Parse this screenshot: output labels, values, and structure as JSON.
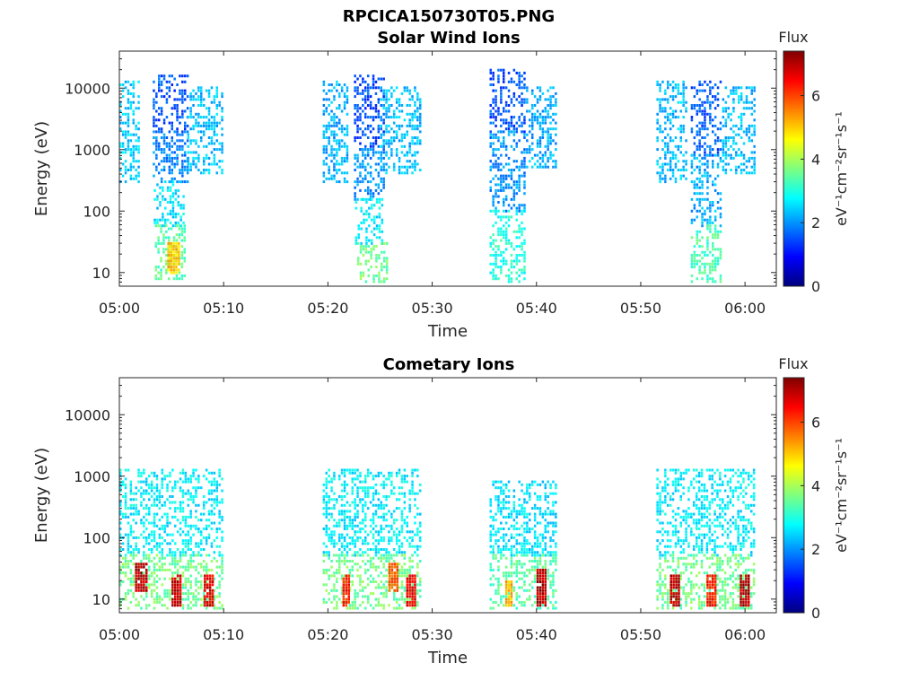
{
  "figure_title": "RPCICA150730T05.PNG",
  "colormap": [
    "#00007f",
    "#0000ff",
    "#007fff",
    "#00ffff",
    "#7fff7f",
    "#ffff00",
    "#ff7f00",
    "#ff0000",
    "#7f0000"
  ],
  "chart_data": [
    {
      "type": "heatmap",
      "title": "Solar Wind Ions",
      "xlabel": "Time",
      "ylabel": "Energy (eV)",
      "x_ticks": [
        "05:00",
        "05:10",
        "05:20",
        "05:30",
        "05:40",
        "05:50",
        "06:00"
      ],
      "x_tick_minutes": [
        0,
        10,
        20,
        30,
        40,
        50,
        60
      ],
      "xlim_minutes": [
        0,
        63
      ],
      "y_ticks": [
        "10",
        "100",
        "1000",
        "10000"
      ],
      "y_tick_values": [
        10,
        100,
        1000,
        10000
      ],
      "ylim": [
        6,
        40000
      ],
      "yscale": "log",
      "colorbar": {
        "label": "Flux",
        "units": "eV⁻¹cm⁻²sr⁻¹s⁻¹",
        "ticks": [
          "0",
          "2",
          "4",
          "6"
        ],
        "range": [
          0,
          7.4
        ]
      },
      "series": [
        {
          "t0": 0.0,
          "t1": 2.0,
          "e_lo": 300,
          "e_hi": 12000,
          "level": 2.4
        },
        {
          "t0": 3.2,
          "t1": 6.5,
          "e_lo": 2000,
          "e_hi": 15000,
          "level": 1.5
        },
        {
          "t0": 3.2,
          "t1": 6.5,
          "e_lo": 300,
          "e_hi": 2000,
          "level": 1.9
        },
        {
          "t0": 3.3,
          "t1": 6.3,
          "e_lo": 60,
          "e_hi": 300,
          "level": 2.6
        },
        {
          "t0": 3.4,
          "t1": 6.3,
          "e_lo": 8,
          "e_hi": 60,
          "level": 3.4
        },
        {
          "t0": 4.6,
          "t1": 5.7,
          "e_lo": 10,
          "e_hi": 30,
          "level": 5.0
        },
        {
          "t0": 6.5,
          "t1": 9.8,
          "e_lo": 400,
          "e_hi": 10000,
          "level": 2.3
        },
        {
          "t0": 19.5,
          "t1": 22.0,
          "e_lo": 300,
          "e_hi": 12000,
          "level": 2.2
        },
        {
          "t0": 22.5,
          "t1": 25.5,
          "e_lo": 1000,
          "e_hi": 15000,
          "level": 1.5
        },
        {
          "t0": 22.5,
          "t1": 25.5,
          "e_lo": 150,
          "e_hi": 1000,
          "level": 2.0
        },
        {
          "t0": 22.6,
          "t1": 25.2,
          "e_lo": 30,
          "e_hi": 150,
          "level": 2.7
        },
        {
          "t0": 22.8,
          "t1": 25.8,
          "e_lo": 7,
          "e_hi": 30,
          "level": 3.6
        },
        {
          "t0": 25.0,
          "t1": 29.0,
          "e_lo": 400,
          "e_hi": 10000,
          "level": 2.3
        },
        {
          "t0": 35.5,
          "t1": 39.0,
          "e_lo": 2000,
          "e_hi": 20000,
          "level": 1.5
        },
        {
          "t0": 35.5,
          "t1": 39.0,
          "e_lo": 100,
          "e_hi": 2000,
          "level": 2.0
        },
        {
          "t0": 35.5,
          "t1": 38.8,
          "e_lo": 7,
          "e_hi": 100,
          "level": 3.0
        },
        {
          "t0": 39.0,
          "t1": 42.0,
          "e_lo": 500,
          "e_hi": 10000,
          "level": 2.2
        },
        {
          "t0": 51.5,
          "t1": 54.5,
          "e_lo": 300,
          "e_hi": 12000,
          "level": 2.3
        },
        {
          "t0": 54.8,
          "t1": 57.8,
          "e_lo": 800,
          "e_hi": 12000,
          "level": 1.6
        },
        {
          "t0": 54.8,
          "t1": 57.8,
          "e_lo": 60,
          "e_hi": 800,
          "level": 2.2
        },
        {
          "t0": 54.8,
          "t1": 57.6,
          "e_lo": 7,
          "e_hi": 60,
          "level": 3.3
        },
        {
          "t0": 57.8,
          "t1": 61.0,
          "e_lo": 400,
          "e_hi": 10000,
          "level": 2.3
        }
      ]
    },
    {
      "type": "heatmap",
      "title": "Cometary Ions",
      "xlabel": "Time",
      "ylabel": "Energy (eV)",
      "x_ticks": [
        "05:00",
        "05:10",
        "05:20",
        "05:30",
        "05:40",
        "05:50",
        "06:00"
      ],
      "x_tick_minutes": [
        0,
        10,
        20,
        30,
        40,
        50,
        60
      ],
      "xlim_minutes": [
        0,
        63
      ],
      "y_ticks": [
        "10",
        "100",
        "1000",
        "10000"
      ],
      "y_tick_values": [
        10,
        100,
        1000,
        10000
      ],
      "ylim": [
        6,
        40000
      ],
      "yscale": "log",
      "colorbar": {
        "label": "Flux",
        "units": "eV⁻¹cm⁻²sr⁻¹s⁻¹",
        "ticks": [
          "0",
          "2",
          "4",
          "6"
        ],
        "range": [
          0,
          7.4
        ]
      },
      "series": [
        {
          "t0": 0.0,
          "t1": 10.0,
          "e_lo": 50,
          "e_hi": 1200,
          "level": 2.7
        },
        {
          "t0": 0.0,
          "t1": 10.0,
          "e_lo": 7,
          "e_hi": 50,
          "level": 3.6
        },
        {
          "t0": 1.5,
          "t1": 2.6,
          "e_lo": 14,
          "e_hi": 35,
          "level": 7.0
        },
        {
          "t0": 5.0,
          "t1": 5.8,
          "e_lo": 8,
          "e_hi": 25,
          "level": 6.8
        },
        {
          "t0": 8.1,
          "t1": 9.0,
          "e_lo": 8,
          "e_hi": 25,
          "level": 6.6
        },
        {
          "t0": 19.5,
          "t1": 29.0,
          "e_lo": 50,
          "e_hi": 1200,
          "level": 2.7
        },
        {
          "t0": 19.5,
          "t1": 29.0,
          "e_lo": 7,
          "e_hi": 50,
          "level": 3.6
        },
        {
          "t0": 21.4,
          "t1": 22.0,
          "e_lo": 8,
          "e_hi": 25,
          "level": 6.3
        },
        {
          "t0": 25.8,
          "t1": 26.6,
          "e_lo": 14,
          "e_hi": 35,
          "level": 5.8
        },
        {
          "t0": 27.5,
          "t1": 28.3,
          "e_lo": 8,
          "e_hi": 25,
          "level": 6.6
        },
        {
          "t0": 35.5,
          "t1": 42.0,
          "e_lo": 50,
          "e_hi": 800,
          "level": 2.6
        },
        {
          "t0": 35.5,
          "t1": 42.0,
          "e_lo": 7,
          "e_hi": 50,
          "level": 3.4
        },
        {
          "t0": 37.0,
          "t1": 37.7,
          "e_lo": 8,
          "e_hi": 20,
          "level": 5.2
        },
        {
          "t0": 40.0,
          "t1": 41.0,
          "e_lo": 8,
          "e_hi": 30,
          "level": 7.0
        },
        {
          "t0": 51.5,
          "t1": 61.0,
          "e_lo": 50,
          "e_hi": 1200,
          "level": 2.7
        },
        {
          "t0": 51.5,
          "t1": 61.0,
          "e_lo": 7,
          "e_hi": 50,
          "level": 3.6
        },
        {
          "t0": 52.8,
          "t1": 53.8,
          "e_lo": 8,
          "e_hi": 25,
          "level": 6.9
        },
        {
          "t0": 56.3,
          "t1": 57.2,
          "e_lo": 8,
          "e_hi": 25,
          "level": 6.3
        },
        {
          "t0": 59.5,
          "t1": 60.4,
          "e_lo": 8,
          "e_hi": 25,
          "level": 7.0
        }
      ]
    }
  ]
}
